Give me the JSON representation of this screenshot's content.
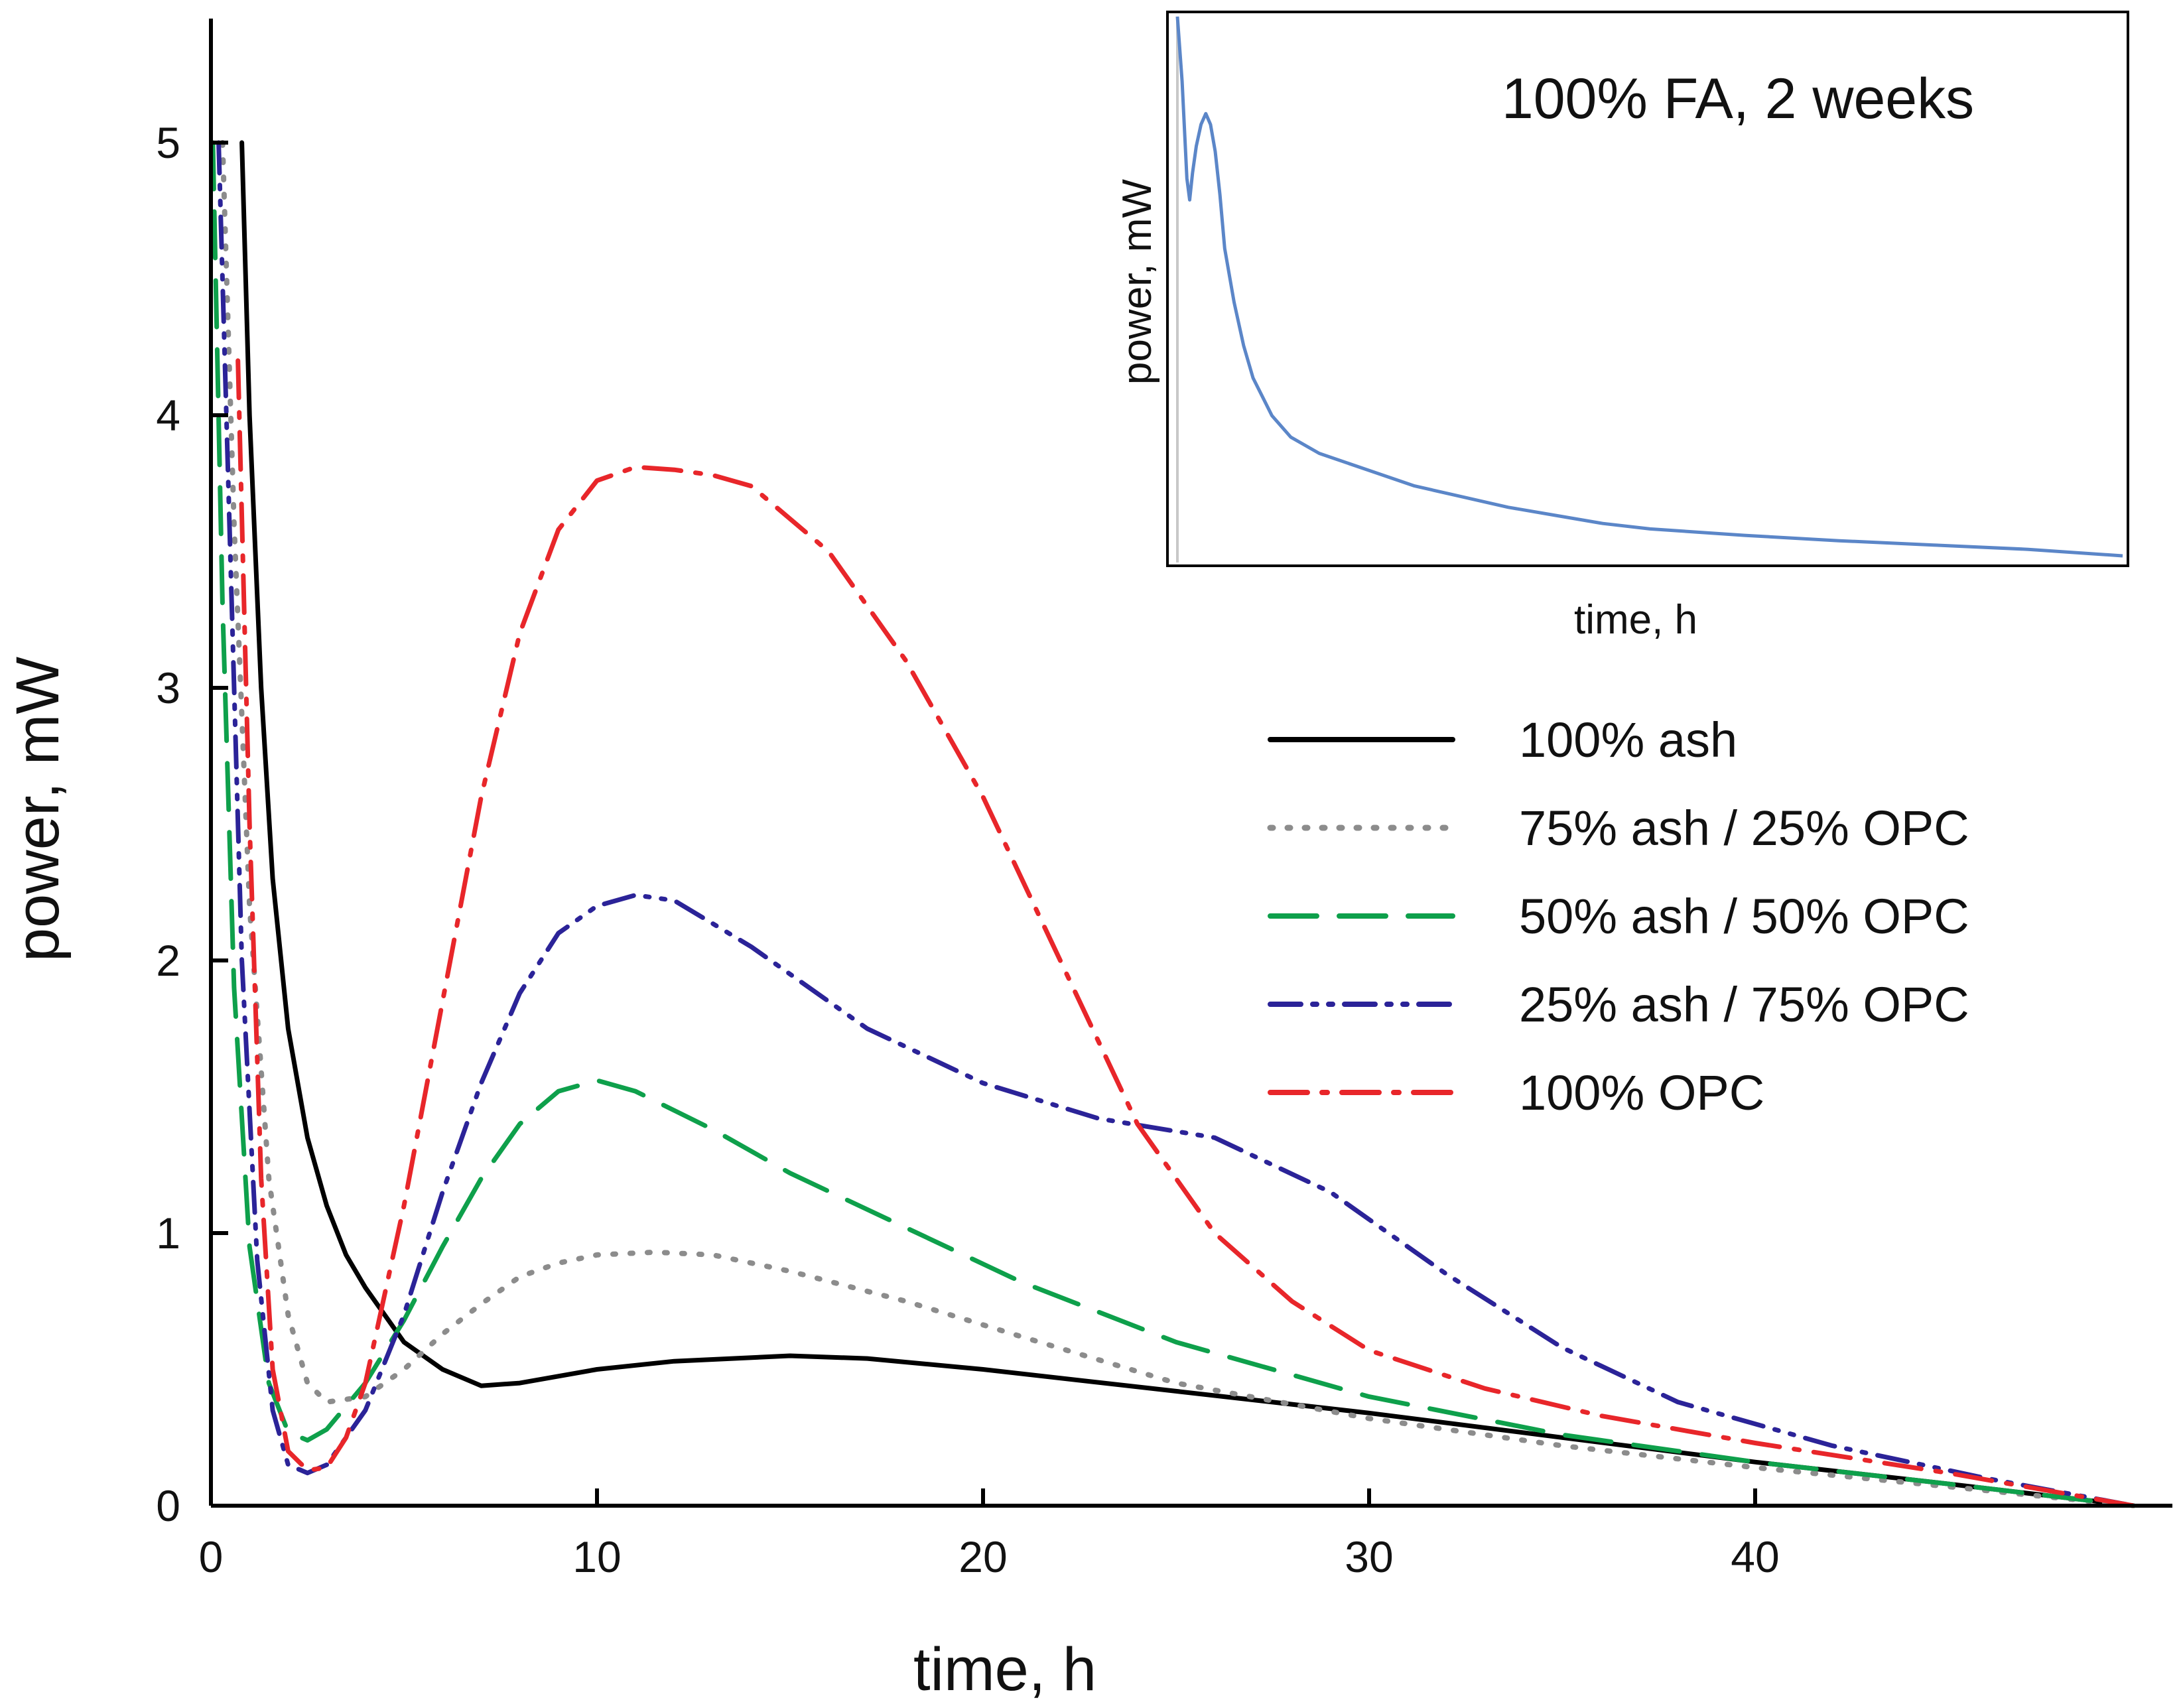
{
  "chart_data": [
    {
      "type": "line",
      "title": "",
      "xlabel": "time, h",
      "ylabel": "power, mW",
      "xlim": [
        0,
        50
      ],
      "ylim": [
        0,
        5.5
      ],
      "xticks": [
        0,
        10,
        20,
        30,
        40
      ],
      "yticks": [
        0,
        1,
        2,
        3,
        4,
        5
      ],
      "grid": false,
      "legend_position": "center-right",
      "series": [
        {
          "name": "100% ash",
          "color": "#000000",
          "style": "solid",
          "x": [
            0.8,
            1.0,
            1.3,
            1.6,
            2.0,
            2.5,
            3.0,
            3.5,
            4.0,
            5.0,
            6.0,
            7.0,
            8.0,
            10.0,
            12.0,
            15.0,
            17.0,
            20.0,
            25.0,
            30.0,
            35.0,
            40.0,
            45.0,
            49.8
          ],
          "y": [
            5.0,
            4.0,
            3.0,
            2.3,
            1.75,
            1.35,
            1.1,
            0.92,
            0.8,
            0.6,
            0.5,
            0.44,
            0.45,
            0.5,
            0.53,
            0.55,
            0.54,
            0.5,
            0.42,
            0.34,
            0.25,
            0.16,
            0.08,
            0.0
          ]
        },
        {
          "name": "75% ash / 25% OPC",
          "color": "#8c8c8c",
          "style": "dotted",
          "x": [
            0.3,
            0.6,
            1.0,
            1.5,
            2.0,
            2.5,
            3.0,
            4.0,
            5.0,
            6.0,
            7.0,
            8.0,
            9.0,
            10.0,
            11.5,
            13.0,
            15.0,
            18.0,
            21.0,
            25.0,
            30.0,
            35.0,
            40.0,
            45.0,
            49.8
          ],
          "y": [
            5.0,
            3.6,
            2.2,
            1.2,
            0.7,
            0.45,
            0.38,
            0.4,
            0.5,
            0.63,
            0.74,
            0.84,
            0.89,
            0.92,
            0.93,
            0.92,
            0.86,
            0.75,
            0.62,
            0.45,
            0.32,
            0.22,
            0.14,
            0.07,
            0.0
          ]
        },
        {
          "name": "50% ash / 50% OPC",
          "color": "#0ea04b",
          "style": "dashed",
          "x": [
            0.05,
            0.3,
            0.6,
            1.0,
            1.5,
            2.0,
            2.5,
            3.0,
            4.0,
            5.0,
            6.0,
            7.0,
            8.0,
            9.0,
            10.0,
            11.0,
            13.0,
            15.0,
            18.0,
            21.0,
            25.0,
            30.0,
            35.0,
            40.0,
            45.0,
            49.8
          ],
          "y": [
            5.0,
            3.3,
            1.9,
            0.95,
            0.45,
            0.27,
            0.24,
            0.28,
            0.45,
            0.68,
            0.95,
            1.2,
            1.4,
            1.52,
            1.56,
            1.52,
            1.38,
            1.22,
            1.02,
            0.82,
            0.6,
            0.4,
            0.26,
            0.16,
            0.08,
            0.0
          ]
        },
        {
          "name": "25% ash / 75% OPC",
          "color": "#2b2398",
          "style": "dash-dot-dot",
          "x": [
            0.2,
            0.5,
            0.8,
            1.2,
            1.6,
            2.0,
            2.5,
            3.0,
            4.0,
            5.0,
            6.0,
            7.0,
            8.0,
            9.0,
            10.0,
            11.0,
            12.0,
            14.0,
            17.0,
            20.0,
            23.0,
            26.0,
            29.0,
            32.0,
            35.0,
            38.0,
            42.0,
            46.0,
            49.8
          ],
          "y": [
            5.0,
            3.5,
            2.0,
            0.9,
            0.35,
            0.15,
            0.12,
            0.15,
            0.35,
            0.7,
            1.15,
            1.55,
            1.88,
            2.1,
            2.2,
            2.24,
            2.22,
            2.05,
            1.75,
            1.55,
            1.42,
            1.35,
            1.15,
            0.85,
            0.58,
            0.38,
            0.22,
            0.1,
            0.0
          ]
        },
        {
          "name": "100% OPC",
          "color": "#e8262a",
          "style": "dash-dot",
          "x": [
            0.7,
            1.0,
            1.3,
            1.6,
            2.0,
            2.5,
            3.0,
            3.5,
            4.0,
            5.0,
            6.0,
            7.0,
            8.0,
            9.0,
            10.0,
            11.0,
            12.0,
            13.0,
            14.0,
            16.0,
            18.0,
            20.0,
            22.0,
            24.0,
            26.0,
            28.0,
            30.0,
            33.0,
            36.0,
            40.0,
            45.0,
            49.8
          ],
          "y": [
            4.2,
            2.5,
            1.2,
            0.5,
            0.2,
            0.13,
            0.14,
            0.25,
            0.45,
            1.1,
            1.85,
            2.6,
            3.2,
            3.58,
            3.76,
            3.81,
            3.8,
            3.78,
            3.74,
            3.5,
            3.1,
            2.6,
            2.0,
            1.4,
            1.0,
            0.75,
            0.57,
            0.43,
            0.33,
            0.23,
            0.12,
            0.0
          ]
        }
      ]
    },
    {
      "type": "line",
      "title": "100% FA, 2 weeks",
      "xlabel": "time, h",
      "ylabel": "power, mW",
      "xticks": [],
      "yticks": [],
      "grid": false,
      "legend_position": "none",
      "normalized_units": true,
      "series": [
        {
          "name": "100% FA, 2 weeks",
          "color": "#5b86c8",
          "style": "solid",
          "x": [
            0.0,
            0.005,
            0.01,
            0.013,
            0.016,
            0.02,
            0.025,
            0.03,
            0.035,
            0.04,
            0.045,
            0.05,
            0.06,
            0.07,
            0.08,
            0.1,
            0.12,
            0.15,
            0.2,
            0.25,
            0.3,
            0.35,
            0.4,
            0.45,
            0.5,
            0.6,
            0.7,
            0.8,
            0.9,
            1.0
          ],
          "y": [
            1.0,
            0.88,
            0.7,
            0.66,
            0.71,
            0.76,
            0.8,
            0.82,
            0.8,
            0.75,
            0.67,
            0.57,
            0.47,
            0.39,
            0.33,
            0.26,
            0.22,
            0.19,
            0.16,
            0.13,
            0.11,
            0.09,
            0.075,
            0.06,
            0.05,
            0.038,
            0.028,
            0.02,
            0.012,
            0.0
          ]
        }
      ]
    }
  ]
}
